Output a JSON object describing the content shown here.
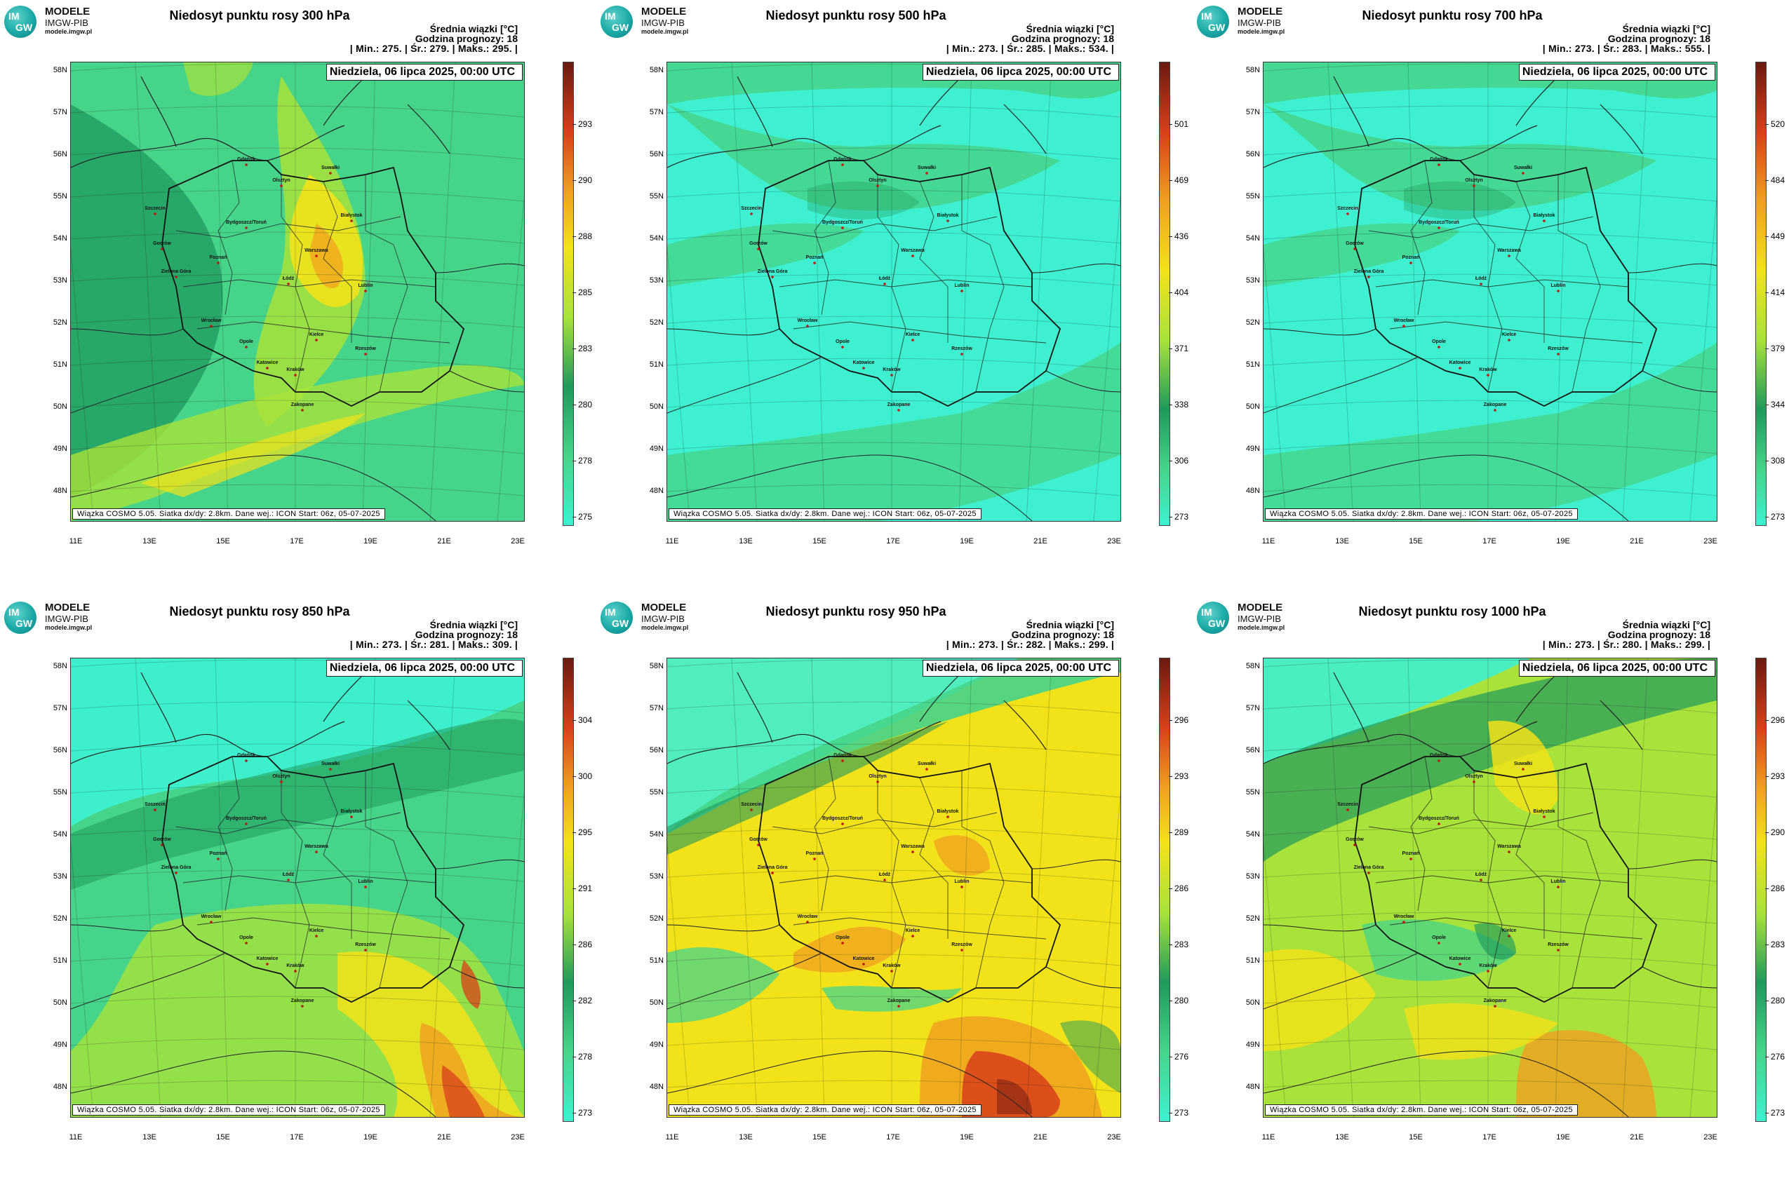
{
  "logo": {
    "disc_top": "IM",
    "disc_bottom": "GW",
    "title": "MODELE",
    "subtitle": "IMGW-PIB",
    "url": "modele.imgw.pl"
  },
  "panels": [
    {
      "title": "Niedosyt punktu rosy 300 hPa",
      "info_line1": "Średnia wiązki [°C]",
      "info_line2": "Godzina prognozy: 18",
      "info_line3": "| Min.:   275. | Śr.:   279. | Maks.:   295. |",
      "date": "Niedziela, 06 lipca 2025, 00:00 UTC",
      "footer": "Wiązka COSMO 5.05. Siatka dx/dy: 2.8km. Dane wej.: ICON Start: 06z, 05-07-2025",
      "colorbar_ticks": [
        "293",
        "290",
        "288",
        "285",
        "283",
        "280",
        "278",
        "275"
      ],
      "style": "yellow"
    },
    {
      "title": "Niedosyt punktu rosy 500 hPa",
      "info_line1": "Średnia wiązki [°C]",
      "info_line2": "Godzina prognozy: 18",
      "info_line3": "| Min.:   273. | Śr.:   285. | Maks.:   534. |",
      "date": "Niedziela, 06 lipca 2025, 00:00 UTC",
      "footer": "Wiązka COSMO 5.05. Siatka dx/dy: 2.8km. Dane wej.: ICON Start: 06z, 05-07-2025",
      "colorbar_ticks": [
        "501",
        "469",
        "436",
        "404",
        "371",
        "338",
        "306",
        "273"
      ],
      "style": "cyan"
    },
    {
      "title": "Niedosyt punktu rosy 700 hPa",
      "info_line1": "Średnia wiązki [°C]",
      "info_line2": "Godzina prognozy: 18",
      "info_line3": "| Min.:   273. | Śr.:   283. | Maks.:   555. |",
      "date": "Niedziela, 06 lipca 2025, 00:00 UTC",
      "footer": "Wiązka COSMO 5.05. Siatka dx/dy: 2.8km. Dane wej.: ICON Start: 06z, 05-07-2025",
      "colorbar_ticks": [
        "520",
        "484",
        "449",
        "414",
        "379",
        "344",
        "308",
        "273"
      ],
      "style": "cyan"
    },
    {
      "title": "Niedosyt punktu rosy 850 hPa",
      "info_line1": "Średnia wiązki [°C]",
      "info_line2": "Godzina prognozy: 18",
      "info_line3": "| Min.:   273. | Śr.:   281. | Maks.:   309. |",
      "date": "Niedziela, 06 lipca 2025, 00:00 UTC",
      "footer": "Wiązka COSMO 5.05. Siatka dx/dy: 2.8km. Dane wej.: ICON Start: 06z, 05-07-2025",
      "colorbar_ticks": [
        "304",
        "300",
        "295",
        "291",
        "286",
        "282",
        "278",
        "273"
      ],
      "style": "green"
    },
    {
      "title": "Niedosyt punktu rosy 950 hPa",
      "info_line1": "Średnia wiązki [°C]",
      "info_line2": "Godzina prognozy: 18",
      "info_line3": "| Min.:   273. | Śr.:   282. | Maks.:   299. |",
      "date": "Niedziela, 06 lipca 2025, 00:00 UTC",
      "footer": "Wiązka COSMO 5.05. Siatka dx/dy: 2.8km. Dane wej.: ICON Start: 06z, 05-07-2025",
      "colorbar_ticks": [
        "296",
        "293",
        "289",
        "286",
        "283",
        "280",
        "276",
        "273"
      ],
      "style": "warm"
    },
    {
      "title": "Niedosyt punktu rosy 1000 hPa",
      "info_line1": "Średnia wiązki [°C]",
      "info_line2": "Godzina prognozy: 18",
      "info_line3": "| Min.:   273. | Śr.:   280. | Maks.:   299. |",
      "date": "Niedziela, 06 lipca 2025, 00:00 UTC",
      "footer": "Wiązka COSMO 5.05. Siatka dx/dy: 2.8km. Dane wej.: ICON Start: 06z, 05-07-2025",
      "colorbar_ticks": [
        "296",
        "293",
        "290",
        "286",
        "283",
        "280",
        "276",
        "273"
      ],
      "style": "mixed"
    }
  ],
  "lat_labels": [
    "58N",
    "57N",
    "56N",
    "55N",
    "54N",
    "53N",
    "52N",
    "51N",
    "50N",
    "49N",
    "48N"
  ],
  "lon_labels": [
    "11E",
    "13E",
    "15E",
    "17E",
    "19E",
    "21E",
    "23E"
  ],
  "cities": [
    "Gdańsk",
    "Olsztyn",
    "Suwałki",
    "Szczecin",
    "Bydgoszcz/Toruń",
    "Białystok",
    "Gorzów",
    "Poznań",
    "Warszawa",
    "Zielona Góra",
    "Łódź",
    "Lublin",
    "Wrocław",
    "Opole",
    "Kielce",
    "Katowice",
    "Kraków",
    "Rzeszów",
    "Zakopane"
  ],
  "colors": {
    "cyan": "#3ef0d0",
    "green_light": "#46d48a",
    "green_dark": "#1f9a5c",
    "yellow_green": "#a8e23a",
    "yellow": "#f2e21a",
    "orange": "#f0a020",
    "red": "#d8401a",
    "dark_red": "#6b1a10"
  }
}
